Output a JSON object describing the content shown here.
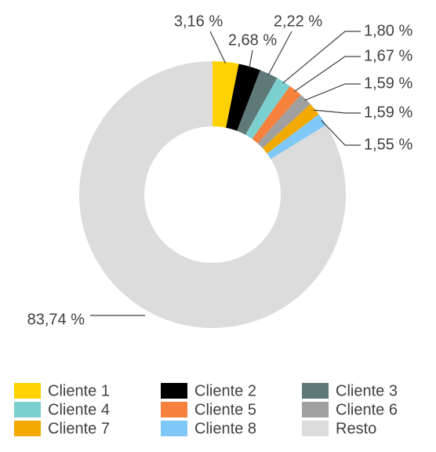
{
  "chart_data": {
    "type": "donut",
    "categories": [
      "Cliente 1",
      "Cliente 2",
      "Cliente 3",
      "Cliente 4",
      "Cliente 5",
      "Cliente 6",
      "Cliente 7",
      "Cliente 8",
      "Resto"
    ],
    "values": [
      3.16,
      2.68,
      2.22,
      1.8,
      1.67,
      1.59,
      1.59,
      1.55,
      83.74
    ],
    "value_labels": [
      "3,16 %",
      "2,68 %",
      "2,22 %",
      "1,80 %",
      "1,67 %",
      "1,59 %",
      "1,59 %",
      "1,55 %",
      "83,74 %"
    ],
    "colors": [
      "#ffd100",
      "#000000",
      "#5f7878",
      "#7ccfcf",
      "#f5813c",
      "#a0a0a0",
      "#f2a900",
      "#80c8f7",
      "#dcdcdc"
    ],
    "legend": "bottom"
  }
}
